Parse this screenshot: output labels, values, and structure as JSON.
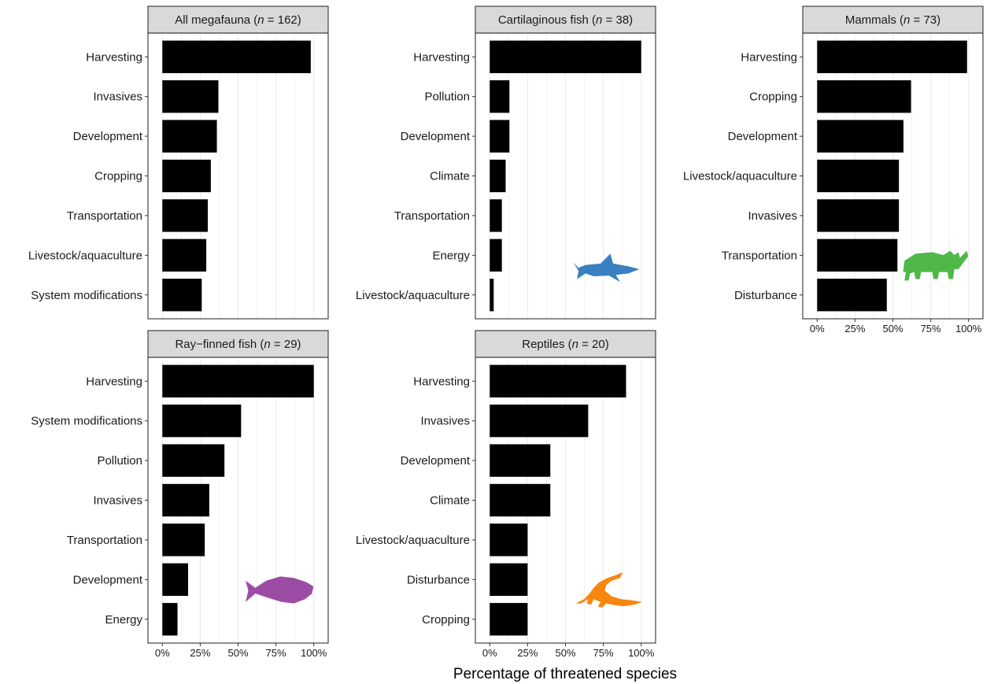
{
  "chart_data": [
    {
      "type": "bar",
      "title_parts": [
        "All megafauna (",
        "n",
        " = 162)"
      ],
      "categories": [
        "Harvesting",
        "Invasives",
        "Development",
        "Cropping",
        "Transportation",
        "Livestock/aquaculture",
        "System modifications"
      ],
      "values": [
        98,
        37,
        36,
        32,
        30,
        29,
        26
      ],
      "xlim": [
        0,
        100
      ],
      "xticks": [
        "0%",
        "25%",
        "50%",
        "75%",
        "100%"
      ],
      "show_xticks": false,
      "silhouette": null
    },
    {
      "type": "bar",
      "title_parts": [
        "Cartilaginous fish (",
        "n",
        " = 38)"
      ],
      "categories": [
        "Harvesting",
        "Pollution",
        "Development",
        "Climate",
        "Transportation",
        "Energy",
        "Livestock/aquaculture"
      ],
      "values": [
        100,
        13,
        13,
        10.5,
        8,
        8,
        2.6
      ],
      "xlim": [
        0,
        100
      ],
      "xticks": [
        "0%",
        "25%",
        "50%",
        "75%",
        "100%"
      ],
      "show_xticks": false,
      "silhouette": {
        "name": "shark-icon",
        "color": "#3A7FC1"
      }
    },
    {
      "type": "bar",
      "title_parts": [
        "Mammals (",
        "n",
        " = 73)"
      ],
      "categories": [
        "Harvesting",
        "Cropping",
        "Development",
        "Livestock/aquaculture",
        "Invasives",
        "Transportation",
        "Disturbance"
      ],
      "values": [
        99,
        62,
        57,
        54,
        54,
        53,
        46
      ],
      "xlim": [
        0,
        100
      ],
      "xticks": [
        "0%",
        "25%",
        "50%",
        "75%",
        "100%"
      ],
      "show_xticks": true,
      "silhouette": {
        "name": "rhino-icon",
        "color": "#4FB848"
      }
    },
    {
      "type": "bar",
      "title_parts": [
        "Ray−finned fish (",
        "n",
        " = 29)"
      ],
      "categories": [
        "Harvesting",
        "System modifications",
        "Pollution",
        "Invasives",
        "Transportation",
        "Development",
        "Energy"
      ],
      "values": [
        100,
        52,
        41,
        31,
        28,
        17,
        10
      ],
      "xlim": [
        0,
        100
      ],
      "xticks": [
        "0%",
        "25%",
        "50%",
        "75%",
        "100%"
      ],
      "show_xticks": true,
      "silhouette": {
        "name": "fish-icon",
        "color": "#9B4DA6"
      }
    },
    {
      "type": "bar",
      "title_parts": [
        "Reptiles (",
        "n",
        " = 20)"
      ],
      "categories": [
        "Harvesting",
        "Invasives",
        "Development",
        "Climate",
        "Livestock/aquaculture",
        "Disturbance",
        "Cropping"
      ],
      "values": [
        90,
        65,
        40,
        40,
        25,
        25,
        25
      ],
      "xlim": [
        0,
        100
      ],
      "xticks": [
        "0%",
        "25%",
        "50%",
        "75%",
        "100%"
      ],
      "show_xticks": true,
      "silhouette": {
        "name": "crocodile-icon",
        "color": "#F7860F"
      }
    }
  ],
  "xlabel": "Percentage of threatened species"
}
